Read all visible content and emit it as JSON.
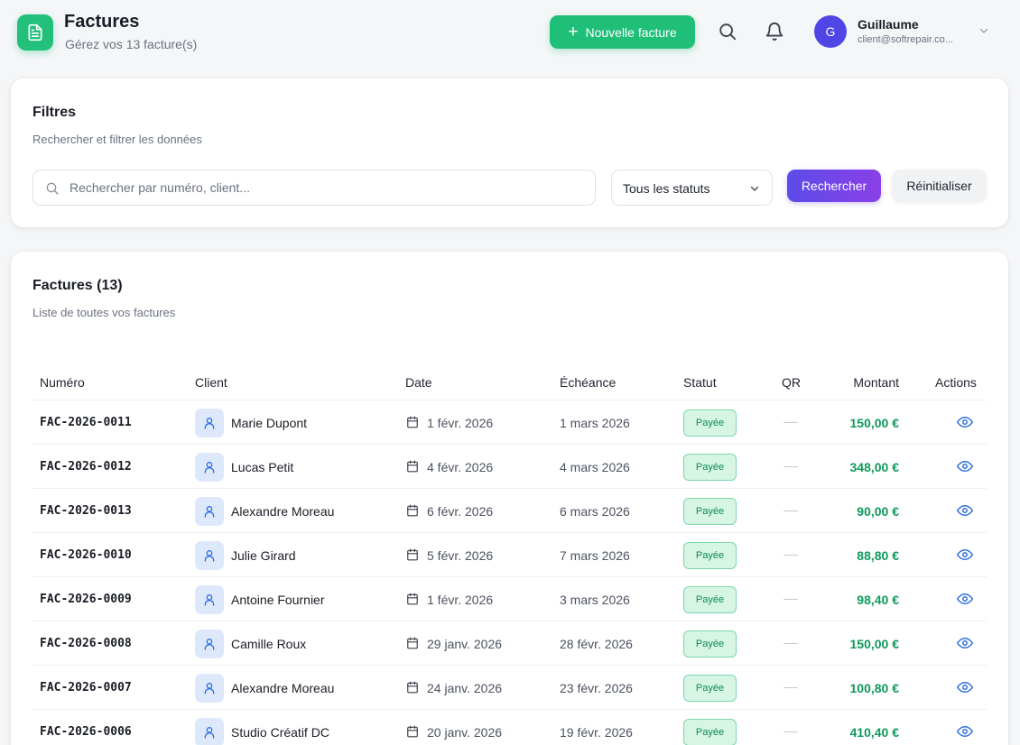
{
  "header": {
    "title": "Factures",
    "subtitle": "Gérez vos 13 facture(s)",
    "new_invoice_label": "Nouvelle facture",
    "user": {
      "initial": "G",
      "name": "Guillaume",
      "email": "client@softrepair.co..."
    }
  },
  "filters": {
    "title": "Filtres",
    "subtitle": "Rechercher et filtrer les données",
    "search_placeholder": "Rechercher par numéro, client...",
    "search_value": "",
    "status_selected": "Tous les statuts",
    "search_button": "Rechercher",
    "reset_button": "Réinitialiser"
  },
  "invoices": {
    "title": "Factures (13)",
    "subtitle": "Liste de toutes vos factures",
    "columns": [
      "Numéro",
      "Client",
      "Date",
      "Échéance",
      "Statut",
      "QR",
      "Montant",
      "Actions"
    ],
    "rows": [
      {
        "number": "FAC-2026-0011",
        "client": "Marie Dupont",
        "date": "1 févr. 2026",
        "due": "1 mars 2026",
        "status": "Payée",
        "amount": "150,00 €"
      },
      {
        "number": "FAC-2026-0012",
        "client": "Lucas Petit",
        "date": "4 févr. 2026",
        "due": "4 mars 2026",
        "status": "Payée",
        "amount": "348,00 €"
      },
      {
        "number": "FAC-2026-0013",
        "client": "Alexandre Moreau",
        "date": "6 févr. 2026",
        "due": "6 mars 2026",
        "status": "Payée",
        "amount": "90,00 €"
      },
      {
        "number": "FAC-2026-0010",
        "client": "Julie Girard",
        "date": "5 févr. 2026",
        "due": "7 mars 2026",
        "status": "Payée",
        "amount": "88,80 €"
      },
      {
        "number": "FAC-2026-0009",
        "client": "Antoine Fournier",
        "date": "1 févr. 2026",
        "due": "3 mars 2026",
        "status": "Payée",
        "amount": "98,40 €"
      },
      {
        "number": "FAC-2026-0008",
        "client": "Camille Roux",
        "date": "29 janv. 2026",
        "due": "28 févr. 2026",
        "status": "Payée",
        "amount": "150,00 €"
      },
      {
        "number": "FAC-2026-0007",
        "client": "Alexandre Moreau",
        "date": "24 janv. 2026",
        "due": "23 févr. 2026",
        "status": "Payée",
        "amount": "100,80 €"
      },
      {
        "number": "FAC-2026-0006",
        "client": "Studio Créatif DC",
        "date": "20 janv. 2026",
        "due": "19 févr. 2026",
        "status": "Payée",
        "amount": "410,40 €"
      }
    ]
  },
  "icons": {
    "app": "document-icon",
    "search": "search-icon",
    "notifications": "bell-icon",
    "user_menu": "chevron-down-icon",
    "client": "user-icon",
    "date": "calendar-icon",
    "view": "eye-icon"
  },
  "colors": {
    "accent_green": "#1fbf78",
    "accent_purple": "#5b4ce8",
    "avatar": "#4f46e5",
    "paid_badge_bg": "#d7f5e5",
    "paid_badge_text": "#0e8a52",
    "amount": "#0f9a5c",
    "view_icon": "#2f6fe0"
  }
}
